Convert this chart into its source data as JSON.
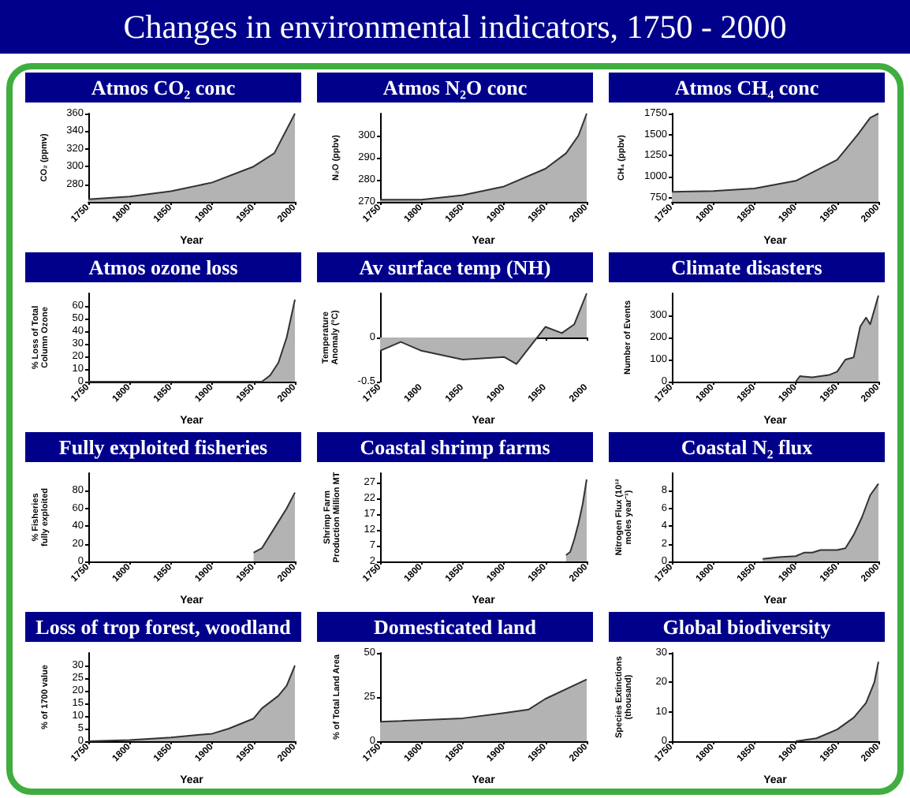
{
  "chart_data": [
    {
      "type": "other",
      "title": "Changes in environmental indicators, 1750 - 2000"
    },
    {
      "type": "area",
      "title": "Atmos CO₂ conc",
      "xlabel": "Year",
      "ylabel": "CO₂ (ppmv)",
      "color": "#b3b3b3",
      "x": [
        1750,
        1800,
        1850,
        1900,
        1950,
        1975,
        2000
      ],
      "values": [
        263,
        266,
        272,
        282,
        300,
        315,
        360
      ],
      "xlim": [
        1750,
        2000
      ],
      "xticks": [
        1750,
        1800,
        1850,
        1900,
        1950,
        2000
      ],
      "ylim": [
        260,
        360
      ],
      "yticks": [
        280,
        300,
        320,
        340,
        360
      ]
    },
    {
      "type": "area",
      "title": "Atmos N₂O conc",
      "xlabel": "Year",
      "ylabel": "N₂O (ppbv)",
      "color": "#b3b3b3",
      "x": [
        1750,
        1800,
        1850,
        1900,
        1950,
        1975,
        1990,
        2000
      ],
      "values": [
        271,
        271,
        273,
        277,
        285,
        292,
        300,
        310
      ],
      "xlim": [
        1750,
        2000
      ],
      "xticks": [
        1750,
        1800,
        1850,
        1900,
        1950,
        2000
      ],
      "ylim": [
        270,
        310
      ],
      "yticks": [
        270,
        280,
        290,
        300
      ]
    },
    {
      "type": "area",
      "title": "Atmos CH₄ conc",
      "xlabel": "Year",
      "ylabel": "CH₄ (ppbv)",
      "color": "#b3b3b3",
      "x": [
        1750,
        1800,
        1850,
        1900,
        1950,
        1975,
        1990,
        2000
      ],
      "values": [
        820,
        830,
        860,
        950,
        1200,
        1500,
        1700,
        1750
      ],
      "xlim": [
        1750,
        2000
      ],
      "xticks": [
        1750,
        1800,
        1850,
        1900,
        1950,
        2000
      ],
      "ylim": [
        700,
        1750
      ],
      "yticks": [
        750,
        1000,
        1250,
        1500,
        1750
      ]
    },
    {
      "type": "area",
      "title": "Atmos ozone loss",
      "xlabel": "Year",
      "ylabel": "% Loss of Total Column Ozone",
      "color": "#b3b3b3",
      "x": [
        1750,
        1960,
        1970,
        1980,
        1990,
        2000
      ],
      "values": [
        0,
        0,
        5,
        15,
        35,
        65
      ],
      "xlim": [
        1750,
        2000
      ],
      "xticks": [
        1750,
        1800,
        1850,
        1900,
        1950,
        2000
      ],
      "ylim": [
        0,
        70
      ],
      "yticks": [
        0,
        10,
        20,
        30,
        40,
        50,
        60
      ]
    },
    {
      "type": "area",
      "title": "Av surface temp (NH)",
      "xlabel": "Year",
      "ylabel": "Temperature Anomaly (°C)",
      "color": "#b3b3b3",
      "x": [
        1750,
        1775,
        1800,
        1850,
        1900,
        1915,
        1950,
        1970,
        1985,
        2000
      ],
      "values": [
        -0.15,
        -0.05,
        -0.15,
        -0.25,
        -0.22,
        -0.3,
        0.12,
        0.05,
        0.15,
        0.5
      ],
      "xlim": [
        1750,
        2000
      ],
      "xticks": [
        1750,
        1800,
        1850,
        1900,
        1950,
        2000
      ],
      "ylim": [
        -0.5,
        0.5
      ],
      "yticks": [
        -0.5,
        0
      ]
    },
    {
      "type": "area",
      "title": "Climate disasters",
      "xlabel": "Year",
      "ylabel": "Number of Events",
      "color": "#b3b3b3",
      "x": [
        1900,
        1905,
        1920,
        1940,
        1950,
        1960,
        1970,
        1978,
        1985,
        1990,
        2000
      ],
      "values": [
        0,
        25,
        20,
        30,
        45,
        100,
        110,
        250,
        290,
        260,
        390
      ],
      "xlim": [
        1750,
        2000
      ],
      "xticks": [
        1750,
        1800,
        1850,
        1900,
        1950,
        2000
      ],
      "ylim": [
        0,
        400
      ],
      "yticks": [
        0,
        100,
        200,
        300
      ]
    },
    {
      "type": "area",
      "title": "Fully exploited fisheries",
      "xlabel": "Year",
      "ylabel": "% Fisheries fully exploited",
      "color": "#b3b3b3",
      "x": [
        1950,
        1960,
        1970,
        1980,
        1990,
        2000
      ],
      "values": [
        10,
        15,
        30,
        45,
        60,
        78
      ],
      "xlim": [
        1750,
        2000
      ],
      "xticks": [
        1750,
        1800,
        1850,
        1900,
        1950,
        2000
      ],
      "ylim": [
        0,
        100
      ],
      "yticks": [
        0,
        20,
        40,
        60,
        80
      ]
    },
    {
      "type": "area",
      "title": "Coastal shrimp farms",
      "xlabel": "Year",
      "ylabel": "Shrimp Farm Production Million MT",
      "color": "#b3b3b3",
      "x": [
        1975,
        1980,
        1985,
        1990,
        1995,
        2000
      ],
      "values": [
        4,
        5,
        9,
        14,
        20,
        28
      ],
      "xlim": [
        1750,
        2000
      ],
      "xticks": [
        1750,
        1800,
        1850,
        1900,
        1950,
        2000
      ],
      "ylim": [
        2,
        30
      ],
      "yticks": [
        2,
        7,
        12,
        17,
        22,
        27
      ]
    },
    {
      "type": "area",
      "title": "Coastal N₂ flux",
      "xlabel": "Year",
      "ylabel": "Nitrogen Flux (10¹² moles year⁻¹)",
      "color": "#b3b3b3",
      "x": [
        1860,
        1880,
        1900,
        1910,
        1920,
        1930,
        1950,
        1960,
        1970,
        1980,
        1990,
        2000
      ],
      "values": [
        0.3,
        0.5,
        0.6,
        1,
        1,
        1.3,
        1.3,
        1.5,
        3,
        5,
        7.5,
        8.8
      ],
      "xlim": [
        1750,
        2000
      ],
      "xticks": [
        1750,
        1800,
        1850,
        1900,
        1950,
        2000
      ],
      "ylim": [
        0,
        10
      ],
      "yticks": [
        0,
        2,
        4,
        6,
        8
      ]
    },
    {
      "type": "area",
      "title": "Loss of trop forest, woodland",
      "xlabel": "Year",
      "ylabel": "% of 1700 value",
      "color": "#b3b3b3",
      "x": [
        1750,
        1800,
        1850,
        1900,
        1920,
        1950,
        1960,
        1980,
        1990,
        2000
      ],
      "values": [
        0,
        0.5,
        1.5,
        3,
        5,
        9,
        13,
        18,
        22,
        30
      ],
      "xlim": [
        1750,
        2000
      ],
      "xticks": [
        1750,
        1800,
        1850,
        1900,
        1950,
        2000
      ],
      "ylim": [
        0,
        35
      ],
      "yticks": [
        0,
        5,
        10,
        15,
        20,
        25,
        30
      ]
    },
    {
      "type": "area",
      "title": "Domesticated land",
      "xlabel": "Year",
      "ylabel": "% of Total Land Area",
      "color": "#b3b3b3",
      "x": [
        1750,
        1850,
        1900,
        1930,
        1950,
        2000
      ],
      "values": [
        11,
        13,
        16,
        18,
        24,
        35
      ],
      "xlim": [
        1750,
        2000
      ],
      "xticks": [
        1750,
        1800,
        1850,
        1900,
        1950,
        2000
      ],
      "ylim": [
        0,
        50
      ],
      "yticks": [
        0,
        25,
        50
      ]
    },
    {
      "type": "area",
      "title": "Global biodiversity",
      "xlabel": "Year",
      "ylabel": "Species Extinctions (thousand)",
      "color": "#b3b3b3",
      "x": [
        1900,
        1925,
        1950,
        1970,
        1985,
        1995,
        2000
      ],
      "values": [
        0,
        1,
        4,
        8,
        13,
        20,
        27
      ],
      "xlim": [
        1750,
        2000
      ],
      "xticks": [
        1750,
        1800,
        1850,
        1900,
        1950,
        2000
      ],
      "ylim": [
        0,
        30
      ],
      "yticks": [
        0,
        10,
        20,
        30
      ]
    }
  ]
}
